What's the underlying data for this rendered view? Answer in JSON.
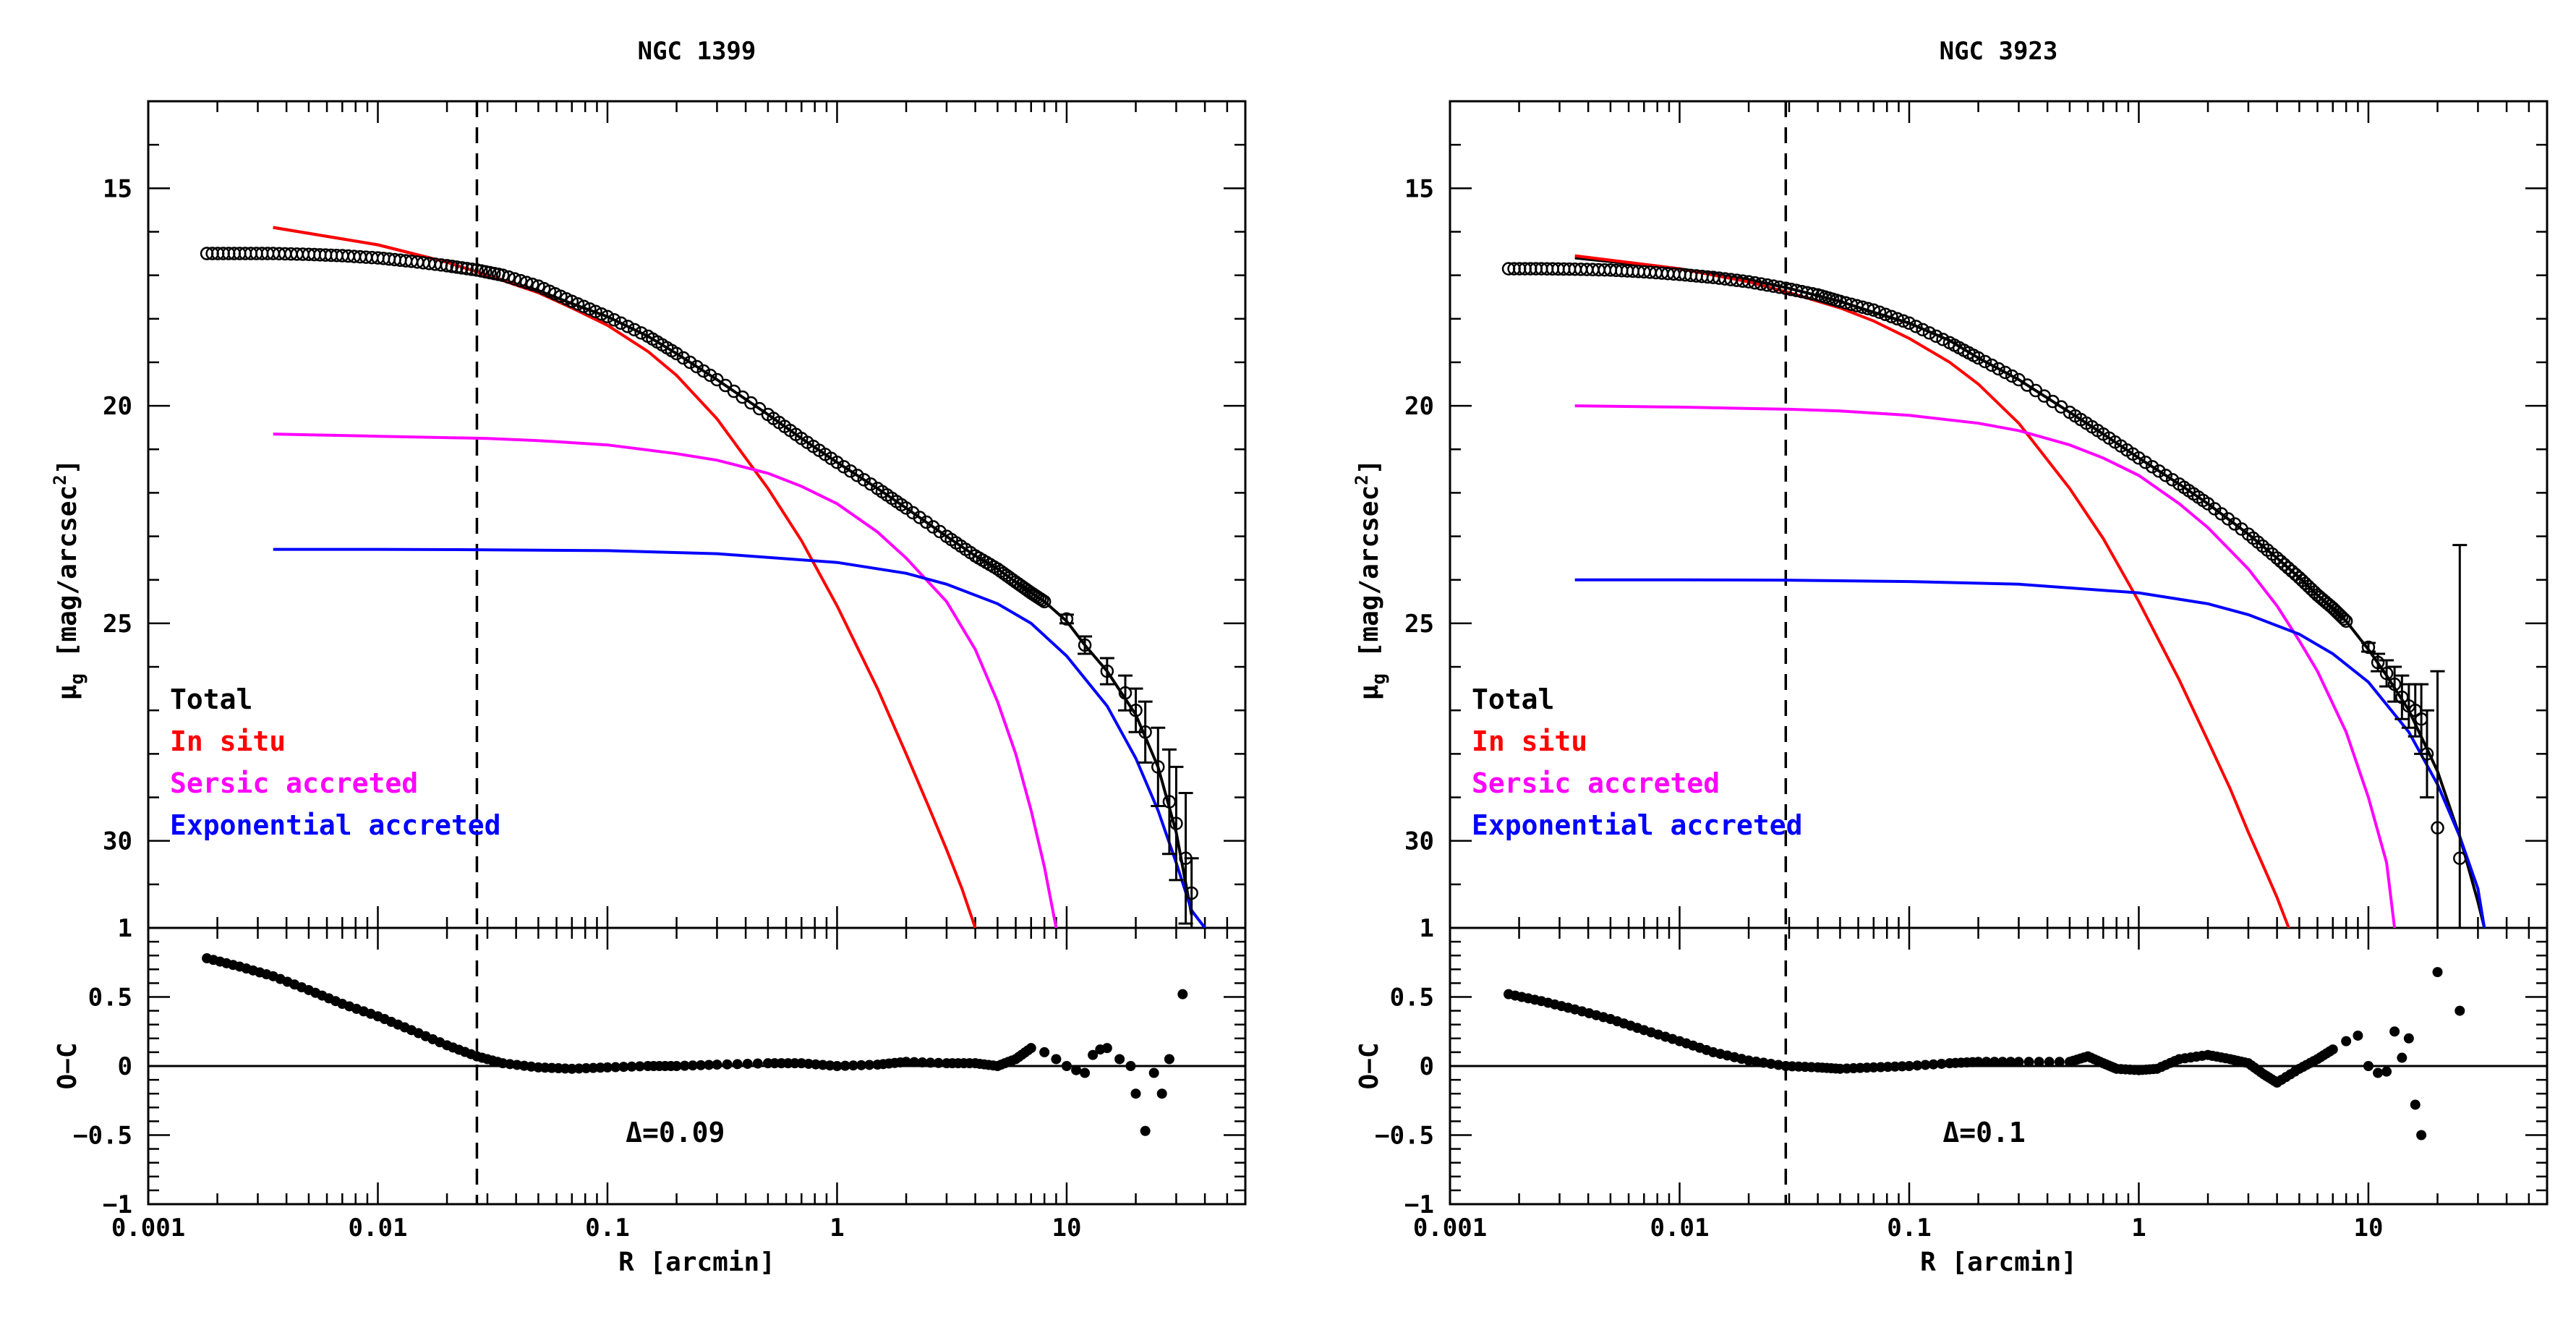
{
  "chart_data": [
    {
      "type": "line",
      "title": "NGC 1399",
      "xlabel": "R [arcmin]",
      "ylabel": "μg [mag/arcsec²]",
      "ylabel_main": "μ",
      "ylabel_sub": "g",
      "ylabel_rest": " [mag/arcsec",
      "ylabel_sup": "2",
      "ylabel_end": "]",
      "residual_ylabel": "O−C",
      "xscale": "log",
      "xlim": [
        0.001,
        60
      ],
      "ylim": [
        32,
        13
      ],
      "residual_ylim": [
        -1,
        1
      ],
      "x_ticks": [
        0.001,
        0.01,
        0.1,
        1,
        10
      ],
      "x_tick_labels": [
        "0.001",
        "0.01",
        "0.1",
        "1",
        "10"
      ],
      "y_ticks": [
        15,
        20,
        25,
        30
      ],
      "y_tick_labels": [
        "15",
        "20",
        "25",
        "30"
      ],
      "residual_y_ticks": [
        1,
        0.5,
        0,
        -0.5,
        -1
      ],
      "residual_y_tick_labels": [
        "1",
        "0.5",
        "0",
        "−0.5",
        "−1"
      ],
      "vline_x": 0.027,
      "annotation": "Δ=0.09",
      "legend": [
        {
          "label": "Total",
          "color": "#000000"
        },
        {
          "label": "In situ",
          "color": "#ff0000"
        },
        {
          "label": "Sersic accreted",
          "color": "#ff00ff"
        },
        {
          "label": "Exponential accreted",
          "color": "#0000ff"
        }
      ],
      "legend_position": "lower-left",
      "data_points": {
        "x": [
          0.0018,
          0.0025,
          0.0035,
          0.005,
          0.007,
          0.01,
          0.014,
          0.02,
          0.027,
          0.035,
          0.05,
          0.07,
          0.1,
          0.15,
          0.2,
          0.3,
          0.5,
          0.7,
          1,
          1.5,
          2,
          3,
          4,
          5,
          6,
          7,
          8,
          10,
          12,
          15,
          18,
          20,
          22,
          25,
          28,
          30,
          33,
          35
        ],
        "y": [
          16.5,
          16.5,
          16.5,
          16.52,
          16.55,
          16.6,
          16.68,
          16.78,
          16.88,
          17.0,
          17.25,
          17.6,
          17.95,
          18.4,
          18.8,
          19.4,
          20.2,
          20.75,
          21.3,
          21.9,
          22.35,
          23.0,
          23.45,
          23.75,
          24.05,
          24.3,
          24.5,
          24.9,
          25.5,
          26.1,
          26.6,
          27.0,
          27.5,
          28.3,
          29.1,
          29.6,
          30.4,
          31.2
        ],
        "err": [
          0,
          0,
          0,
          0,
          0,
          0,
          0,
          0,
          0,
          0,
          0,
          0,
          0,
          0,
          0,
          0,
          0,
          0,
          0,
          0,
          0,
          0,
          0,
          0,
          0,
          0,
          0,
          0.1,
          0.2,
          0.3,
          0.4,
          0.5,
          0.7,
          0.9,
          1.2,
          1.3,
          1.5,
          0.8
        ]
      },
      "series": [
        {
          "name": "Total",
          "color": "#000000",
          "x": [
            0.0035,
            0.01,
            0.02,
            0.03,
            0.05,
            0.07,
            0.1,
            0.15,
            0.2,
            0.3,
            0.5,
            0.7,
            1,
            1.5,
            2,
            3,
            4,
            5,
            6,
            8,
            10,
            12,
            15,
            20,
            25,
            30,
            35
          ],
          "y": [
            15.9,
            16.3,
            16.7,
            17.0,
            17.35,
            17.65,
            17.95,
            18.4,
            18.8,
            19.4,
            20.2,
            20.75,
            21.3,
            21.9,
            22.35,
            23.0,
            23.45,
            23.75,
            24.05,
            24.5,
            24.95,
            25.5,
            26.1,
            27.1,
            28.3,
            29.8,
            31.7
          ]
        },
        {
          "name": "In situ",
          "color": "#ff0000",
          "x": [
            0.0035,
            0.01,
            0.02,
            0.03,
            0.05,
            0.07,
            0.1,
            0.15,
            0.2,
            0.3,
            0.5,
            0.7,
            1,
            1.5,
            2,
            2.5,
            3,
            3.5,
            4
          ],
          "y": [
            15.9,
            16.3,
            16.7,
            17.0,
            17.4,
            17.75,
            18.15,
            18.75,
            19.3,
            20.3,
            21.9,
            23.1,
            24.6,
            26.5,
            28.0,
            29.2,
            30.2,
            31.1,
            32.0
          ]
        },
        {
          "name": "Sersic accreted",
          "color": "#ff00ff",
          "x": [
            0.0035,
            0.01,
            0.03,
            0.05,
            0.1,
            0.2,
            0.3,
            0.5,
            0.7,
            1,
            1.5,
            2,
            3,
            4,
            5,
            6,
            7,
            8,
            9
          ],
          "y": [
            20.65,
            20.7,
            20.75,
            20.8,
            20.9,
            21.1,
            21.25,
            21.55,
            21.85,
            22.25,
            22.9,
            23.5,
            24.5,
            25.6,
            26.8,
            28.0,
            29.3,
            30.6,
            32.0
          ]
        },
        {
          "name": "Exponential accreted",
          "color": "#0000ff",
          "x": [
            0.0035,
            0.01,
            0.03,
            0.1,
            0.3,
            1,
            2,
            3,
            5,
            7,
            10,
            15,
            20,
            25,
            30,
            35,
            40
          ],
          "y": [
            23.3,
            23.3,
            23.31,
            23.33,
            23.4,
            23.6,
            23.85,
            24.1,
            24.55,
            25.0,
            25.75,
            26.9,
            28.1,
            29.3,
            30.5,
            31.6,
            32.0
          ]
        }
      ],
      "residuals": {
        "x": [
          0.0018,
          0.0025,
          0.0035,
          0.005,
          0.007,
          0.01,
          0.014,
          0.02,
          0.027,
          0.035,
          0.05,
          0.07,
          0.1,
          0.15,
          0.2,
          0.3,
          0.5,
          0.7,
          1,
          1.5,
          2,
          3,
          4,
          5,
          6,
          7,
          8,
          9,
          10,
          11,
          12,
          13,
          14,
          15,
          17,
          19,
          20,
          22,
          24,
          26,
          28,
          32
        ],
        "y": [
          0.78,
          0.72,
          0.65,
          0.55,
          0.45,
          0.36,
          0.26,
          0.15,
          0.07,
          0.02,
          -0.01,
          -0.02,
          -0.01,
          0.0,
          0.0,
          0.01,
          0.02,
          0.02,
          0.0,
          0.01,
          0.03,
          0.02,
          0.02,
          0.0,
          0.05,
          0.13,
          0.1,
          0.05,
          0.0,
          -0.03,
          -0.05,
          0.08,
          0.12,
          0.13,
          0.05,
          0.0,
          -0.2,
          -0.47,
          -0.05,
          -0.2,
          0.05,
          0.52
        ]
      }
    },
    {
      "type": "line",
      "title": "NGC 3923",
      "xlabel": "R [arcmin]",
      "ylabel": "μg [mag/arcsec²]",
      "ylabel_main": "μ",
      "ylabel_sub": "g",
      "ylabel_rest": " [mag/arcsec",
      "ylabel_sup": "2",
      "ylabel_end": "]",
      "residual_ylabel": "O−C",
      "xscale": "log",
      "xlim": [
        0.001,
        60
      ],
      "ylim": [
        32,
        13
      ],
      "residual_ylim": [
        -1,
        1
      ],
      "x_ticks": [
        0.001,
        0.01,
        0.1,
        1,
        10
      ],
      "x_tick_labels": [
        "0.001",
        "0.01",
        "0.1",
        "1",
        "10"
      ],
      "y_ticks": [
        15,
        20,
        25,
        30
      ],
      "y_tick_labels": [
        "15",
        "20",
        "25",
        "30"
      ],
      "residual_y_ticks": [
        1,
        0.5,
        0,
        -0.5,
        -1
      ],
      "residual_y_tick_labels": [
        "1",
        "0.5",
        "0",
        "−0.5",
        "−1"
      ],
      "vline_x": 0.029,
      "annotation": "Δ=0.1",
      "legend": [
        {
          "label": "Total",
          "color": "#000000"
        },
        {
          "label": "In situ",
          "color": "#ff0000"
        },
        {
          "label": "Sersic accreted",
          "color": "#ff00ff"
        },
        {
          "label": "Exponential accreted",
          "color": "#0000ff"
        }
      ],
      "legend_position": "lower-left",
      "data_points": {
        "x": [
          0.0018,
          0.0025,
          0.0035,
          0.005,
          0.007,
          0.01,
          0.014,
          0.02,
          0.029,
          0.04,
          0.05,
          0.07,
          0.1,
          0.15,
          0.2,
          0.3,
          0.5,
          0.7,
          1,
          1.5,
          2,
          3,
          4,
          5,
          6,
          7,
          8,
          10,
          11,
          12,
          13,
          14,
          15,
          16,
          17,
          18,
          20,
          25
        ],
        "y": [
          16.85,
          16.85,
          16.86,
          16.88,
          16.92,
          16.98,
          17.05,
          17.15,
          17.3,
          17.45,
          17.6,
          17.8,
          18.1,
          18.55,
          18.9,
          19.4,
          20.15,
          20.65,
          21.2,
          21.8,
          22.25,
          22.95,
          23.5,
          23.95,
          24.35,
          24.65,
          24.95,
          25.55,
          25.9,
          26.15,
          26.4,
          26.7,
          26.9,
          27.0,
          27.2,
          28.0,
          29.7,
          30.4
        ],
        "err": [
          0,
          0,
          0,
          0,
          0,
          0,
          0,
          0,
          0,
          0,
          0,
          0,
          0,
          0,
          0,
          0,
          0,
          0,
          0,
          0,
          0,
          0,
          0,
          0,
          0,
          0,
          0,
          0.1,
          0.2,
          0.3,
          0.4,
          0.5,
          0.5,
          0.6,
          0.8,
          1.0,
          3.6,
          7.2
        ]
      },
      "series": [
        {
          "name": "Total",
          "color": "#000000",
          "x": [
            0.0035,
            0.01,
            0.02,
            0.03,
            0.05,
            0.07,
            0.1,
            0.15,
            0.2,
            0.3,
            0.5,
            0.7,
            1,
            1.5,
            2,
            3,
            4,
            5,
            6,
            8,
            10,
            12,
            15,
            20,
            25,
            30,
            32
          ],
          "y": [
            16.6,
            16.85,
            17.1,
            17.3,
            17.6,
            17.85,
            18.1,
            18.5,
            18.9,
            19.4,
            20.15,
            20.65,
            21.2,
            21.8,
            22.25,
            22.95,
            23.5,
            23.95,
            24.35,
            24.95,
            25.6,
            26.2,
            27.0,
            28.4,
            29.9,
            31.4,
            32.0
          ]
        },
        {
          "name": "In situ",
          "color": "#ff0000",
          "x": [
            0.0035,
            0.01,
            0.02,
            0.03,
            0.05,
            0.07,
            0.1,
            0.15,
            0.2,
            0.3,
            0.5,
            0.7,
            1,
            1.5,
            2,
            2.5,
            3,
            3.5,
            4,
            4.5
          ],
          "y": [
            16.55,
            16.85,
            17.15,
            17.4,
            17.75,
            18.05,
            18.45,
            19.0,
            19.5,
            20.4,
            21.9,
            23.05,
            24.5,
            26.3,
            27.7,
            28.8,
            29.8,
            30.6,
            31.3,
            32.0
          ]
        },
        {
          "name": "Sersic accreted",
          "color": "#ff00ff",
          "x": [
            0.0035,
            0.01,
            0.03,
            0.05,
            0.1,
            0.2,
            0.3,
            0.5,
            0.7,
            1,
            1.5,
            2,
            3,
            4,
            5,
            6,
            8,
            10,
            12,
            13
          ],
          "y": [
            20.0,
            20.03,
            20.08,
            20.12,
            20.22,
            20.4,
            20.57,
            20.9,
            21.2,
            21.6,
            22.25,
            22.8,
            23.75,
            24.6,
            25.4,
            26.1,
            27.5,
            29.0,
            30.5,
            32.0
          ]
        },
        {
          "name": "Exponential accreted",
          "color": "#0000ff",
          "x": [
            0.0035,
            0.01,
            0.03,
            0.1,
            0.3,
            1,
            2,
            3,
            5,
            7,
            10,
            15,
            20,
            25,
            30,
            32
          ],
          "y": [
            24.0,
            24.0,
            24.01,
            24.04,
            24.1,
            24.3,
            24.55,
            24.8,
            25.25,
            25.7,
            26.35,
            27.5,
            28.7,
            29.9,
            31.1,
            32.0
          ]
        }
      ],
      "residuals": {
        "x": [
          0.0018,
          0.0025,
          0.0035,
          0.005,
          0.007,
          0.01,
          0.014,
          0.02,
          0.029,
          0.04,
          0.05,
          0.07,
          0.1,
          0.15,
          0.2,
          0.3,
          0.5,
          0.6,
          0.7,
          0.8,
          1,
          1.2,
          1.5,
          2,
          2.5,
          3,
          3.5,
          4,
          5,
          6,
          7,
          8,
          9,
          10,
          11,
          12,
          13,
          14,
          15,
          16,
          17,
          20,
          25
        ],
        "y": [
          0.52,
          0.47,
          0.41,
          0.34,
          0.26,
          0.18,
          0.1,
          0.04,
          0.0,
          -0.01,
          -0.02,
          -0.01,
          0.0,
          0.02,
          0.03,
          0.03,
          0.03,
          0.07,
          0.02,
          -0.02,
          -0.03,
          -0.02,
          0.05,
          0.08,
          0.05,
          0.02,
          -0.06,
          -0.12,
          -0.02,
          0.05,
          0.12,
          0.18,
          0.22,
          0.0,
          -0.05,
          -0.04,
          0.25,
          0.06,
          0.2,
          -0.28,
          -0.5,
          0.68,
          0.4
        ]
      }
    }
  ]
}
